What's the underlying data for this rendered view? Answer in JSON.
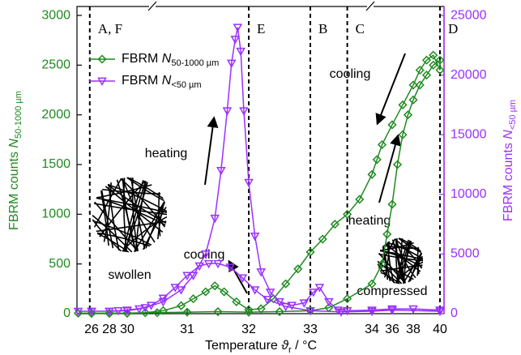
{
  "chart_data": {
    "type": "scatter-line",
    "x_label": {
      "text": "Temperature",
      "symbol": "ϑ",
      "sub": "r",
      "unit": "/ °C"
    },
    "y_label": {
      "text": "FBRM counts",
      "var": "N",
      "sub": "50-1000 µm"
    },
    "y2_label": {
      "text": "FBRM counts",
      "var": "N",
      "sub": "<50 µm"
    },
    "xlim": [
      24.4,
      40.4
    ],
    "xticks": [
      26,
      28,
      30,
      31,
      32,
      33,
      34,
      36,
      38,
      40
    ],
    "x_axis_breaks": true,
    "ylim": [
      0,
      3090
    ],
    "yticks": [
      0,
      500,
      1000,
      1500,
      2000,
      2500,
      3000
    ],
    "y2lim": [
      0,
      25750
    ],
    "y2ticks": [
      0,
      5000,
      10000,
      15000,
      20000,
      25000
    ],
    "y_color": "#1f8a1f",
    "y2_color": "#9b30ff",
    "legend": "upper left",
    "series": [
      {
        "name": "FBRM N",
        "name_sub": "50-1000 µm",
        "color": "#1f8a1f",
        "marker": "diamond",
        "axis": "y",
        "x": [
          24.5,
          26,
          28,
          30,
          30.5,
          31,
          31.5,
          32,
          32.5,
          33,
          33.3,
          33.6,
          34,
          35,
          35.5,
          36,
          36.5,
          37,
          37.5,
          38,
          38.5,
          39,
          39.5,
          40,
          40,
          39.5,
          39,
          38.5,
          38,
          37,
          36,
          35,
          34.5,
          34,
          33.8,
          33.6,
          33.4,
          33.2,
          33,
          32.8,
          32.6,
          32.4,
          32.2,
          32,
          31.8,
          31.6,
          31.45,
          31.3,
          31.1,
          30.9,
          30.6,
          30.3,
          30,
          28,
          26
        ],
        "values": [
          5,
          5,
          5,
          5,
          10,
          15,
          20,
          15,
          20,
          30,
          60,
          150,
          300,
          500,
          800,
          1100,
          1500,
          1800,
          2000,
          2150,
          2300,
          2400,
          2500,
          2550,
          2450,
          2600,
          2550,
          2450,
          2300,
          2100,
          1900,
          1700,
          1550,
          1400,
          1150,
          1000,
          900,
          750,
          620,
          450,
          300,
          150,
          50,
          40,
          120,
          220,
          280,
          220,
          150,
          80,
          30,
          10,
          5,
          3,
          3
        ]
      },
      {
        "name": "FBRM N",
        "name_sub": "<50 µm",
        "color": "#9b30ff",
        "marker": "triangle-down",
        "axis": "y2",
        "x": [
          24.5,
          26,
          28,
          29,
          30,
          30.3,
          30.6,
          30.9,
          31.1,
          31.3,
          31.45,
          31.55,
          31.65,
          31.72,
          31.78,
          31.82,
          31.87,
          31.92,
          32,
          32.1,
          32.2,
          32.35,
          32.5,
          32.7,
          32.9,
          33.05,
          33.15,
          33.3,
          33.45,
          33.6,
          34,
          36,
          38,
          40,
          40,
          36,
          34,
          33.5,
          33,
          32.6,
          32.3,
          32.1,
          31.9,
          31.7,
          31.5,
          31.35,
          31.2,
          31,
          30.8,
          30.6,
          30.4,
          30.2,
          30,
          28,
          26
        ],
        "values": [
          200,
          200,
          200,
          250,
          300,
          500,
          1000,
          2000,
          3200,
          5000,
          8000,
          12000,
          17000,
          21000,
          23000,
          24000,
          22000,
          17000,
          11000,
          6500,
          3500,
          1800,
          1000,
          700,
          900,
          1800,
          2200,
          1000,
          300,
          250,
          300,
          400,
          400,
          300,
          200,
          300,
          200,
          150,
          250,
          600,
          1200,
          2000,
          3000,
          3900,
          4200,
          4200,
          4000,
          3200,
          2200,
          1300,
          700,
          400,
          250,
          200,
          200
        ]
      }
    ],
    "regions": [
      {
        "x": 25.8,
        "label": "A, F"
      },
      {
        "x": 32,
        "label": "E"
      },
      {
        "x": 33,
        "label": "B"
      },
      {
        "x": 33.6,
        "label": "C"
      },
      {
        "x": 40,
        "label": "D"
      }
    ],
    "annotations": [
      "heating",
      "cooling",
      "swollen",
      "cooling",
      "heating",
      "compressed"
    ]
  }
}
